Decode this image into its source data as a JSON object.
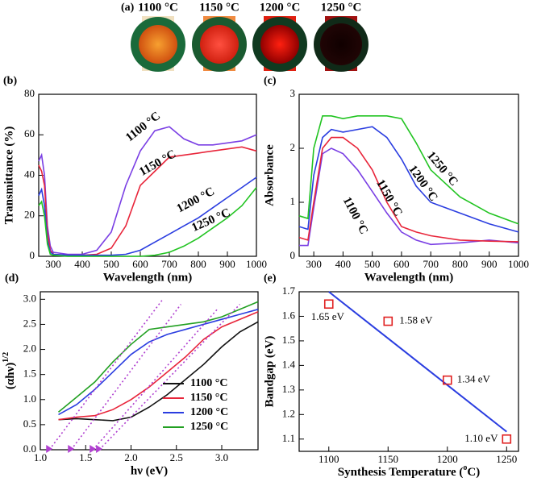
{
  "figure_a": {
    "label": "(a)",
    "captions": [
      "1100 °C",
      "1150 °C",
      "1200 °C",
      "1250 °C"
    ]
  },
  "chart_data": [
    {
      "type": "line",
      "panel_label": "(b)",
      "xlabel": "Wavelength (nm)",
      "ylabel": "Transmittance (%)",
      "xlim": [
        250,
        1000
      ],
      "ylim": [
        0,
        80
      ],
      "xticks": [
        300,
        400,
        500,
        600,
        700,
        800,
        900,
        1000
      ],
      "yticks": [
        0,
        20,
        40,
        60,
        80
      ],
      "x": [
        250,
        260,
        270,
        280,
        290,
        300,
        350,
        400,
        450,
        500,
        550,
        600,
        650,
        700,
        750,
        800,
        850,
        900,
        950,
        1000
      ],
      "series": [
        {
          "name": "1100 °C",
          "color": "#7a3fe4",
          "values": [
            47,
            50,
            40,
            15,
            5,
            2,
            1,
            1,
            3,
            12,
            35,
            52,
            62,
            64,
            58,
            55,
            55,
            56,
            57,
            60
          ]
        },
        {
          "name": "1150 °C",
          "color": "#e8253a",
          "values": [
            45,
            42,
            35,
            12,
            3,
            1,
            0.5,
            0.5,
            1,
            4,
            15,
            35,
            42,
            49,
            50,
            51,
            52,
            53,
            54,
            52
          ]
        },
        {
          "name": "1200 °C",
          "color": "#2a3de0",
          "values": [
            30,
            33,
            25,
            8,
            2,
            1,
            0.5,
            0.5,
            0.5,
            0.5,
            1,
            3,
            7,
            11,
            15,
            19,
            24,
            29,
            34,
            39
          ]
        },
        {
          "name": "1250 °C",
          "color": "#22c422",
          "values": [
            25,
            27,
            20,
            6,
            1,
            0.5,
            0,
            0,
            0,
            0,
            0,
            0,
            0.5,
            2,
            5,
            9,
            14,
            19,
            25,
            34
          ]
        }
      ]
    },
    {
      "type": "line",
      "panel_label": "(c)",
      "xlabel": "Wavelength (nm)",
      "ylabel": "Absorbance",
      "xlim": [
        250,
        1000
      ],
      "ylim": [
        0,
        3
      ],
      "xticks": [
        300,
        400,
        500,
        600,
        700,
        800,
        900,
        1000
      ],
      "yticks": [
        0,
        1,
        2,
        3
      ],
      "x": [
        250,
        280,
        300,
        330,
        360,
        400,
        450,
        500,
        550,
        600,
        650,
        700,
        800,
        900,
        1000
      ],
      "series": [
        {
          "name": "1100 °C",
          "color": "#7a3fe4",
          "values": [
            0.2,
            0.2,
            0.9,
            1.9,
            2.0,
            1.9,
            1.6,
            1.2,
            0.8,
            0.45,
            0.3,
            0.22,
            0.25,
            0.3,
            0.25
          ]
        },
        {
          "name": "1150 °C",
          "color": "#e8253a",
          "values": [
            0.35,
            0.3,
            1.0,
            2.0,
            2.2,
            2.2,
            2.0,
            1.6,
            1.0,
            0.55,
            0.45,
            0.38,
            0.3,
            0.28,
            0.27
          ]
        },
        {
          "name": "1200 °C",
          "color": "#2a3de0",
          "values": [
            0.55,
            0.5,
            1.5,
            2.2,
            2.35,
            2.3,
            2.35,
            2.4,
            2.2,
            1.8,
            1.3,
            1.0,
            0.8,
            0.6,
            0.45
          ]
        },
        {
          "name": "1250 °C",
          "color": "#22c422",
          "values": [
            0.75,
            0.7,
            2.0,
            2.6,
            2.6,
            2.55,
            2.6,
            2.6,
            2.6,
            2.55,
            2.1,
            1.6,
            1.1,
            0.8,
            0.6
          ]
        }
      ]
    },
    {
      "type": "line",
      "panel_label": "(d)",
      "xlabel": "hν (eV)",
      "ylabel": {
        "text": "(αhν)",
        "sup": "1/2"
      },
      "xlim": [
        1,
        3.4
      ],
      "ylim": [
        0,
        3.15
      ],
      "xticks": [
        {
          "value": 1,
          "label": "1.0"
        },
        1.5,
        {
          "value": 2,
          "label": "2.0"
        },
        2.5,
        {
          "value": 3,
          "label": "3.0"
        }
      ],
      "yticks": [
        {
          "value": 0,
          "label": "0.0"
        },
        0.5,
        {
          "value": 1,
          "label": "1.0"
        },
        1.5,
        {
          "value": 2,
          "label": "2.0"
        },
        2.5,
        {
          "value": 3,
          "label": "3.0"
        }
      ],
      "x": [
        1.2,
        1.4,
        1.6,
        1.8,
        2.0,
        2.2,
        2.4,
        2.6,
        2.8,
        3.0,
        3.2,
        3.4
      ],
      "series": [
        {
          "name": "1100 °C",
          "color": "#111111",
          "values": [
            0.6,
            0.62,
            0.6,
            0.58,
            0.65,
            0.85,
            1.1,
            1.4,
            1.7,
            2.05,
            2.35,
            2.55
          ]
        },
        {
          "name": "1150 °C",
          "color": "#e8253a",
          "values": [
            0.6,
            0.65,
            0.68,
            0.8,
            1.0,
            1.25,
            1.55,
            1.85,
            2.2,
            2.45,
            2.6,
            2.75
          ]
        },
        {
          "name": "1200 °C",
          "color": "#2a3de0",
          "values": [
            0.7,
            0.9,
            1.2,
            1.55,
            1.9,
            2.15,
            2.3,
            2.4,
            2.5,
            2.6,
            2.7,
            2.8
          ]
        },
        {
          "name": "1250 °C",
          "color": "#22a022",
          "values": [
            0.75,
            1.05,
            1.35,
            1.75,
            2.1,
            2.4,
            2.45,
            2.5,
            2.55,
            2.65,
            2.8,
            2.95
          ]
        }
      ],
      "fit_color": "#b040d0",
      "fits": [
        {
          "x": [
            1.1,
            2.35
          ],
          "y": [
            0,
            3.0
          ]
        },
        {
          "x": [
            1.34,
            2.55
          ],
          "y": [
            0,
            2.9
          ]
        },
        {
          "x": [
            1.58,
            2.95
          ],
          "y": [
            0,
            2.8
          ]
        },
        {
          "x": [
            1.65,
            3.2
          ],
          "y": [
            0,
            2.9
          ]
        }
      ]
    },
    {
      "type": "scatter",
      "panel_label": "(e)",
      "xlabel": {
        "text": "Synthesis Temperature (",
        "sup": "o",
        "tail": "C)"
      },
      "ylabel": "Bandgap (eV)",
      "xlim": [
        1075,
        1260
      ],
      "ylim": [
        1.05,
        1.7
      ],
      "xticks": [
        1100,
        1150,
        1200,
        1250
      ],
      "yticks": [
        1.1,
        1.2,
        1.3,
        1.4,
        1.5,
        1.6,
        1.7
      ],
      "x": [
        1100,
        1150,
        1200,
        1250
      ],
      "values": [
        1.65,
        1.58,
        1.34,
        1.1
      ],
      "value_labels": [
        "1.65 eV",
        "1.58 eV",
        "1.34 eV",
        "1.10 eV"
      ],
      "color": "#e02020",
      "fit": {
        "x": [
          1100,
          1250
        ],
        "y": [
          1.7,
          1.13
        ],
        "color": "#2a3de0"
      }
    }
  ]
}
